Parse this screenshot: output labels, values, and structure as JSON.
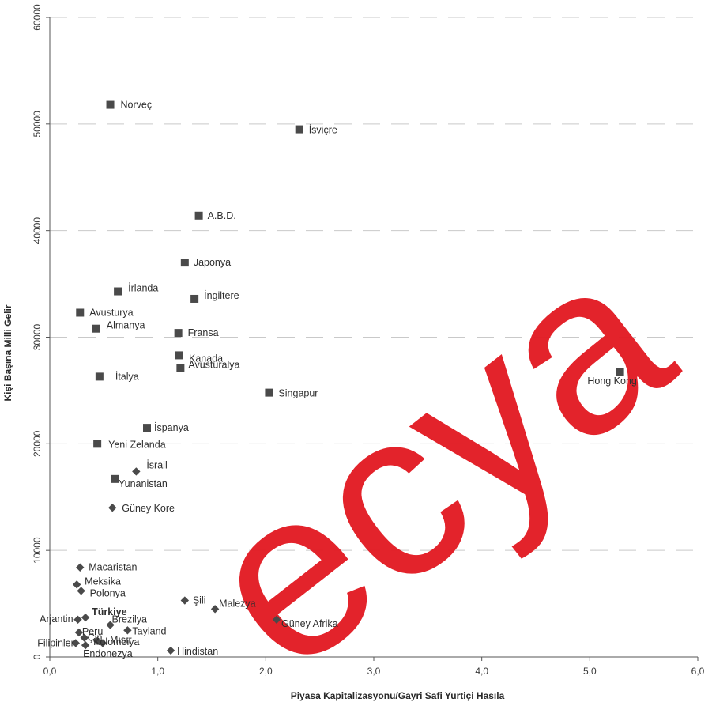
{
  "chart_data": {
    "type": "scatter",
    "title": "",
    "xlabel": "Piyasa Kapitalizasyonu/Gayri Safi Yurtiçi Hasıla",
    "ylabel": "Kişi Başına Milli Gelir",
    "xlim": [
      0,
      6
    ],
    "ylim": [
      0,
      60000
    ],
    "x_ticks": [
      0,
      1,
      2,
      3,
      4,
      5,
      6
    ],
    "x_tick_labels": [
      "0,0",
      "1,0",
      "2,0",
      "3,0",
      "4,0",
      "5,0",
      "6,0"
    ],
    "y_ticks": [
      0,
      10000,
      20000,
      30000,
      40000,
      50000,
      60000
    ],
    "y_tick_labels": [
      "0",
      "10000",
      "20000",
      "30000",
      "40000",
      "50000",
      "60000"
    ],
    "grid": "horizontal dashed",
    "legend": "none",
    "series": [
      {
        "marker": "square",
        "points": [
          {
            "label": "Norveç",
            "x": 0.56,
            "y": 51800
          },
          {
            "label": "İsviçre",
            "x": 2.31,
            "y": 49500
          },
          {
            "label": "A.B.D.",
            "x": 1.38,
            "y": 41400
          },
          {
            "label": "Japonya",
            "x": 1.25,
            "y": 37000
          },
          {
            "label": "İrlanda",
            "x": 0.63,
            "y": 34300
          },
          {
            "label": "İngiltere",
            "x": 1.34,
            "y": 33600
          },
          {
            "label": "Avusturya",
            "x": 0.28,
            "y": 32300
          },
          {
            "label": "Almanya",
            "x": 0.43,
            "y": 30800
          },
          {
            "label": "Fransa",
            "x": 1.19,
            "y": 30400
          },
          {
            "label": "Kanada",
            "x": 1.2,
            "y": 28300
          },
          {
            "label": "Avusturalya",
            "x": 1.21,
            "y": 27100
          },
          {
            "label": "İtalya",
            "x": 0.46,
            "y": 26300
          },
          {
            "label": "Singapur",
            "x": 2.03,
            "y": 24800
          },
          {
            "label": "Hong Kong",
            "x": 5.28,
            "y": 26700
          },
          {
            "label": "İspanya",
            "x": 0.9,
            "y": 21500
          },
          {
            "label": "Yeni Zelanda",
            "x": 0.44,
            "y": 20000
          },
          {
            "label": "Yunanistan",
            "x": 0.6,
            "y": 16700
          }
        ]
      },
      {
        "marker": "diamond",
        "points": [
          {
            "label": "İsrail",
            "x": 0.8,
            "y": 17400
          },
          {
            "label": "Güney Kore",
            "x": 0.58,
            "y": 14000
          },
          {
            "label": "Macaristan",
            "x": 0.28,
            "y": 8400
          },
          {
            "label": "Meksika",
            "x": 0.25,
            "y": 6800
          },
          {
            "label": "Polonya",
            "x": 0.29,
            "y": 6200
          },
          {
            "label": "Şili",
            "x": 1.25,
            "y": 5300
          },
          {
            "label": "Malezya",
            "x": 1.53,
            "y": 4500
          },
          {
            "label": "Güney Afrika",
            "x": 2.1,
            "y": 3500
          },
          {
            "label": "Arjantin",
            "x": 0.26,
            "y": 3500
          },
          {
            "label": "Türkiye",
            "x": 0.33,
            "y": 3700,
            "bold": true
          },
          {
            "label": "Brezilya",
            "x": 0.56,
            "y": 3000
          },
          {
            "label": "Tayland",
            "x": 0.72,
            "y": 2500
          },
          {
            "label": "Peru",
            "x": 0.27,
            "y": 2300
          },
          {
            "label": "Çin",
            "x": 0.32,
            "y": 1800
          },
          {
            "label": "Kolombiya",
            "x": 0.44,
            "y": 1500
          },
          {
            "label": "Filipinler",
            "x": 0.24,
            "y": 1300
          },
          {
            "label": "Mısır",
            "x": 0.49,
            "y": 1300
          },
          {
            "label": "Endonezya",
            "x": 0.33,
            "y": 1100
          },
          {
            "label": "Hindistan",
            "x": 1.12,
            "y": 600
          }
        ]
      }
    ],
    "marker_color": "#4a4a4a",
    "watermark": "ecya",
    "watermark_color": "#e21b23"
  }
}
